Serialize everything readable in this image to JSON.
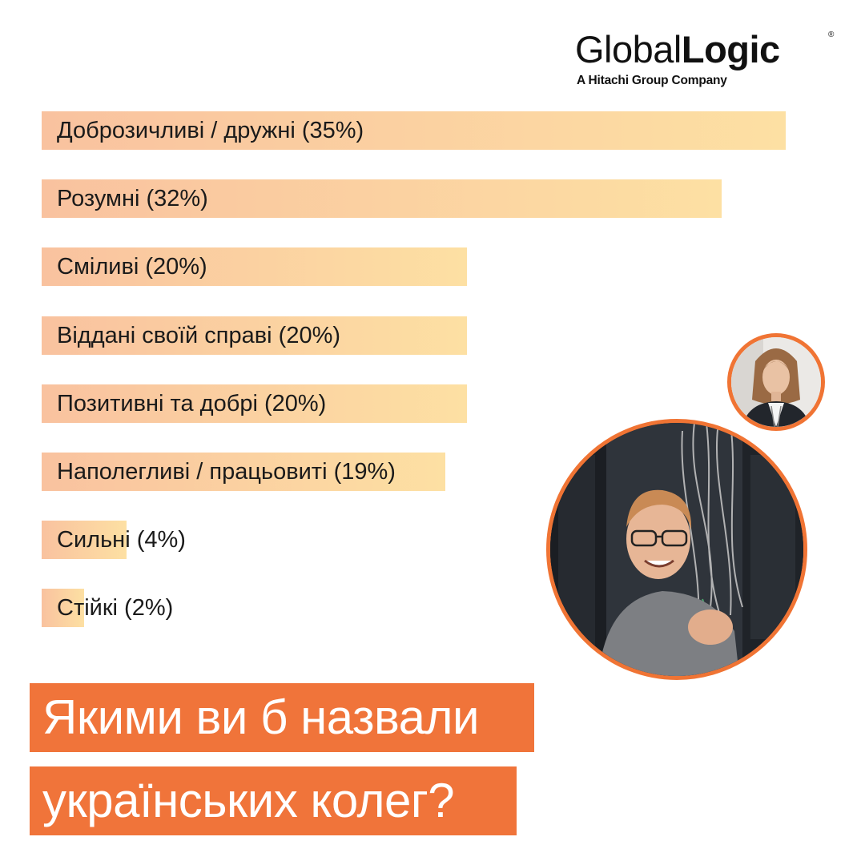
{
  "brand": {
    "logo_light": "Global",
    "logo_bold": "Logic",
    "registered_mark": "®",
    "tagline": "A Hitachi Group Company"
  },
  "chart_data": {
    "type": "bar",
    "orientation": "horizontal",
    "categories": [
      "Доброзичливі / дружні (35%)",
      "Розумні (32%)",
      "Сміливі (20%)",
      "Віддані своїй справі (20%)",
      "Позитивні та добрі (20%)",
      "Наполегливі / працьовиті (19%)",
      "Сильні (4%)",
      "Стійкі (2%)"
    ],
    "values": [
      35,
      32,
      20,
      20,
      20,
      19,
      4,
      2
    ],
    "unit": "%",
    "xlim": [
      0,
      35
    ],
    "grid": false,
    "colors": {
      "bar_start": "#f9c29f",
      "bar_end": "#fde0a3"
    }
  },
  "headline": {
    "line1": "Якими ви б назвали",
    "line2": "українських колег?"
  },
  "colors": {
    "accent": "#f07434",
    "text": "#1a1a1a"
  },
  "images": {
    "portrait_small": "woman-portrait-photo",
    "portrait_large": "man-in-server-room-photo"
  }
}
